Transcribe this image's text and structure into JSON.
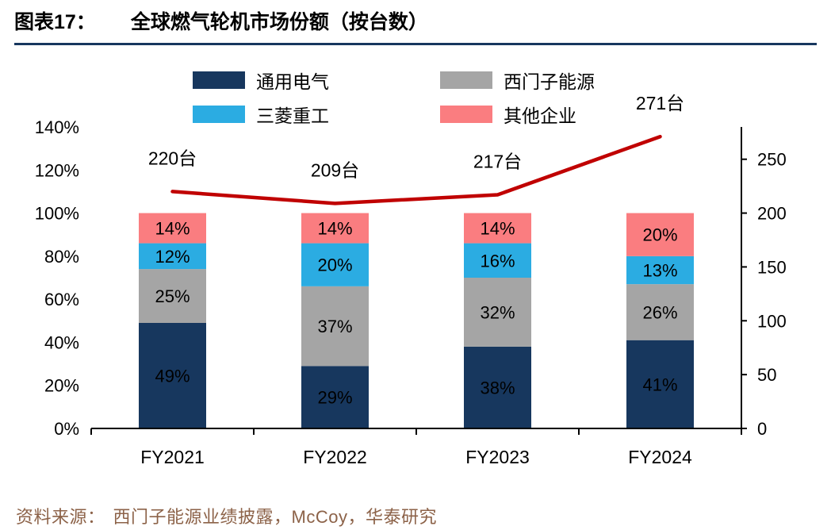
{
  "title": {
    "prefix": "图表17：",
    "text": "全球燃气轮机市场份额（按台数）"
  },
  "chart_data": {
    "type": "bar",
    "subtype": "stacked-bar-with-line",
    "categories": [
      "FY2021",
      "FY2022",
      "FY2023",
      "FY2024"
    ],
    "series": [
      {
        "name": "通用电气",
        "color": "#17375E",
        "label_color": "#FFFFFF",
        "values": [
          49,
          29,
          38,
          41
        ]
      },
      {
        "name": "西门子能源",
        "color": "#A5A5A5",
        "label_color": "#000000",
        "values": [
          25,
          37,
          32,
          26
        ]
      },
      {
        "name": "三菱重工",
        "color": "#2BACE2",
        "label_color": "#000000",
        "values": [
          12,
          20,
          16,
          13
        ]
      },
      {
        "name": "其他企业",
        "color": "#FA7D80",
        "label_color": "#000000",
        "values": [
          14,
          14,
          14,
          20
        ]
      }
    ],
    "line": {
      "color": "#C00000",
      "values": [
        220,
        209,
        217,
        271
      ],
      "labels": [
        "220台",
        "209台",
        "217台",
        "271台"
      ]
    },
    "left_axis": {
      "min": 0,
      "max": 140,
      "step": 20,
      "ticks": [
        "0%",
        "20%",
        "40%",
        "60%",
        "80%",
        "100%",
        "120%",
        "140%"
      ]
    },
    "right_axis": {
      "min": 0,
      "max": 280,
      "step": 50,
      "ticks": [
        0,
        50,
        100,
        150,
        200,
        250
      ]
    },
    "legend_position": "top-center",
    "grid": false,
    "bar_label_suffix": "%"
  },
  "source": {
    "label": "资料来源：",
    "text": "西门子能源业绩披露，McCoy，华泰研究"
  }
}
